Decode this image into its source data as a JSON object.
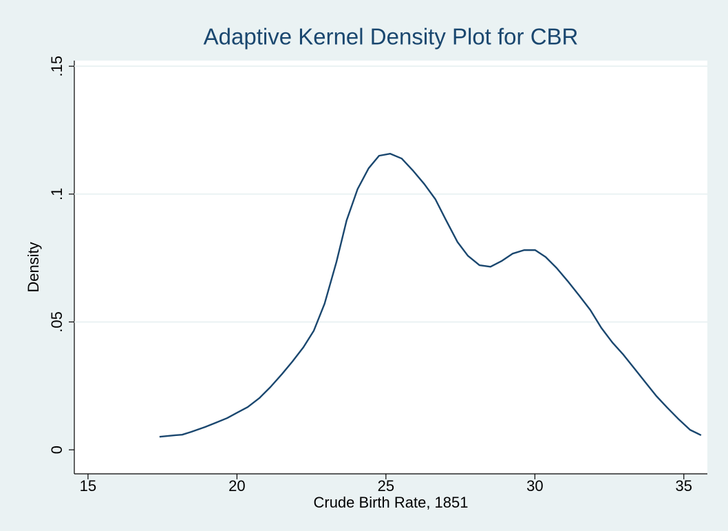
{
  "chart_data": {
    "type": "line",
    "title": "Adaptive Kernel Density Plot for CBR",
    "xlabel": "Crude Birth Rate, 1851",
    "ylabel": "Density",
    "color": "#1a476f",
    "grid": true,
    "x": [
      17.4,
      17.93,
      18.16,
      18.46,
      18.93,
      19.27,
      19.67,
      20.0,
      20.36,
      20.75,
      21.12,
      21.51,
      21.86,
      22.23,
      22.58,
      22.94,
      23.34,
      23.68,
      24.05,
      24.42,
      24.77,
      25.14,
      25.53,
      25.9,
      26.29,
      26.66,
      27.0,
      27.4,
      27.75,
      28.14,
      28.51,
      28.88,
      29.25,
      29.64,
      30.01,
      30.36,
      30.73,
      31.1,
      31.49,
      31.86,
      32.23,
      32.6,
      32.97,
      33.34,
      33.71,
      34.08,
      34.45,
      34.84,
      35.21,
      35.58
    ],
    "values": [
      0.0051,
      0.0057,
      0.0059,
      0.007,
      0.0089,
      0.0105,
      0.0124,
      0.0145,
      0.0167,
      0.0202,
      0.0245,
      0.0296,
      0.0345,
      0.0401,
      0.0466,
      0.0571,
      0.0735,
      0.0897,
      0.102,
      0.1101,
      0.115,
      0.1158,
      0.1139,
      0.1093,
      0.1039,
      0.098,
      0.0902,
      0.0813,
      0.0759,
      0.0722,
      0.0716,
      0.0738,
      0.0767,
      0.0781,
      0.0781,
      0.0754,
      0.0711,
      0.066,
      0.0603,
      0.0547,
      0.0477,
      0.042,
      0.0372,
      0.0318,
      0.0264,
      0.021,
      0.0164,
      0.0118,
      0.0078,
      0.0057
    ],
    "xlim": [
      14.54,
      35.79
    ],
    "xticks": [
      15,
      20,
      25,
      30,
      35
    ],
    "ylim": [
      -0.0094,
      0.1522
    ],
    "yticks": [
      0,
      {
        "value": 0.05,
        "label": ".05"
      },
      {
        "value": 0.1,
        "label": ".1"
      },
      {
        "value": 0.15,
        "label": ".15"
      }
    ]
  }
}
